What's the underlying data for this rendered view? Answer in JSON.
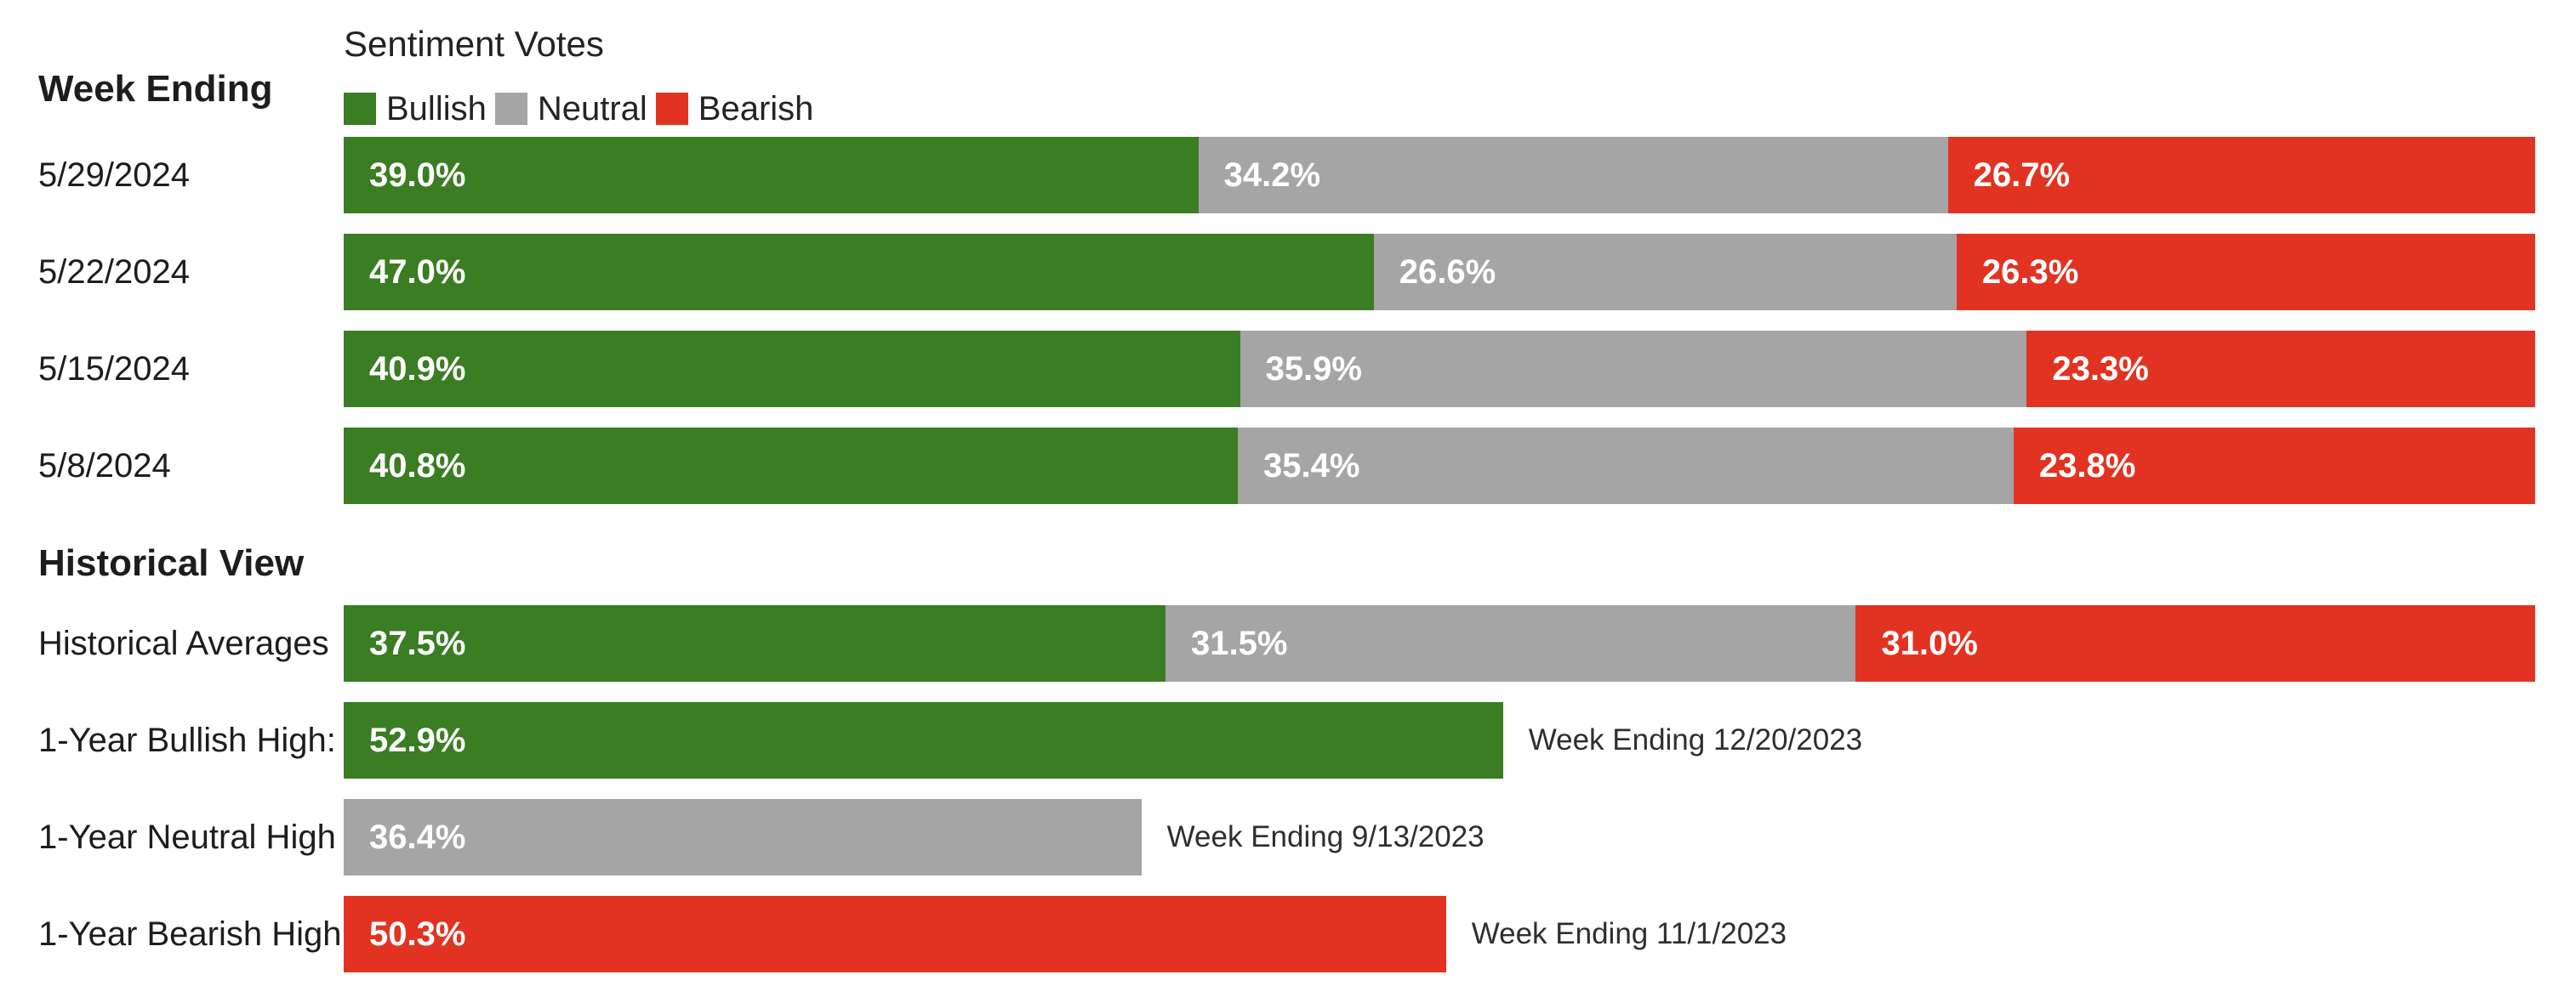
{
  "colors": {
    "bullish": "#3A7D23",
    "neutral": "#A5A5A5",
    "bearish": "#E23322",
    "text": "#1D1D1D",
    "value_label": "#FFFFFF"
  },
  "header": {
    "week_ending_label": "Week Ending",
    "title": "Sentiment Votes",
    "legend": [
      {
        "name": "Bullish",
        "color": "#3A7D23"
      },
      {
        "name": "Neutral",
        "color": "#A5A5A5"
      },
      {
        "name": "Bearish",
        "color": "#E23322"
      }
    ]
  },
  "weekly": {
    "rows": [
      {
        "date": "5/29/2024",
        "bullish": {
          "value": 39.0,
          "label": "39.0%"
        },
        "neutral": {
          "value": 34.2,
          "label": "34.2%"
        },
        "bearish": {
          "value": 26.7,
          "label": "26.7%"
        }
      },
      {
        "date": "5/22/2024",
        "bullish": {
          "value": 47.0,
          "label": "47.0%"
        },
        "neutral": {
          "value": 26.6,
          "label": "26.6%"
        },
        "bearish": {
          "value": 26.3,
          "label": "26.3%"
        }
      },
      {
        "date": "5/15/2024",
        "bullish": {
          "value": 40.9,
          "label": "40.9%"
        },
        "neutral": {
          "value": 35.9,
          "label": "35.9%"
        },
        "bearish": {
          "value": 23.3,
          "label": "23.3%"
        }
      },
      {
        "date": "5/8/2024",
        "bullish": {
          "value": 40.8,
          "label": "40.8%"
        },
        "neutral": {
          "value": 35.4,
          "label": "35.4%"
        },
        "bearish": {
          "value": 23.8,
          "label": "23.8%"
        }
      }
    ]
  },
  "historical": {
    "heading": "Historical View",
    "averages": {
      "label": "Historical Averages",
      "bullish": {
        "value": 37.5,
        "label": "37.5%"
      },
      "neutral": {
        "value": 31.5,
        "label": "31.5%"
      },
      "bearish": {
        "value": 31.0,
        "label": "31.0%"
      }
    },
    "highs": [
      {
        "label": "1-Year Bullish High:",
        "value": 52.9,
        "pct_label": "52.9%",
        "annotation": "Week Ending 12/20/2023"
      },
      {
        "label": "1-Year Neutral High",
        "value": 36.4,
        "pct_label": "36.4%",
        "annotation": "Week Ending 9/13/2023"
      },
      {
        "label": "1-Year Bearish High",
        "value": 50.3,
        "pct_label": "50.3%",
        "annotation": "Week Ending 11/1/2023"
      }
    ]
  },
  "chart_data": {
    "type": "bar",
    "orientation": "horizontal",
    "stacked": true,
    "title": "Sentiment Votes",
    "legend": [
      "Bullish",
      "Neutral",
      "Bearish"
    ],
    "legend_position": "top-left above bars",
    "row_axis_label": "Week Ending",
    "categories": [
      "5/29/2024",
      "5/22/2024",
      "5/15/2024",
      "5/8/2024"
    ],
    "series": [
      {
        "name": "Bullish",
        "color": "#3A7D23",
        "values": [
          39.0,
          47.0,
          40.9,
          40.8
        ]
      },
      {
        "name": "Neutral",
        "color": "#A5A5A5",
        "values": [
          34.2,
          26.6,
          35.9,
          35.4
        ]
      },
      {
        "name": "Bearish",
        "color": "#E23322",
        "values": [
          26.7,
          26.3,
          23.3,
          23.8
        ]
      }
    ],
    "historical_section": {
      "heading": "Historical View",
      "historical_averages": {
        "Bullish": 37.5,
        "Neutral": 31.5,
        "Bearish": 31.0
      },
      "one_year_highs": [
        {
          "label": "1-Year Bullish High:",
          "series": "Bullish",
          "value": 52.9,
          "annotation": "Week Ending 12/20/2023"
        },
        {
          "label": "1-Year Neutral High",
          "series": "Neutral",
          "value": 36.4,
          "annotation": "Week Ending 9/13/2023"
        },
        {
          "label": "1-Year Bearish High",
          "series": "Bearish",
          "value": 50.3,
          "annotation": "Week Ending 11/1/2023"
        }
      ]
    },
    "x_range": [
      0,
      100
    ],
    "unit": "%",
    "grid": false,
    "value_labels": "inside-left, white, bold"
  }
}
